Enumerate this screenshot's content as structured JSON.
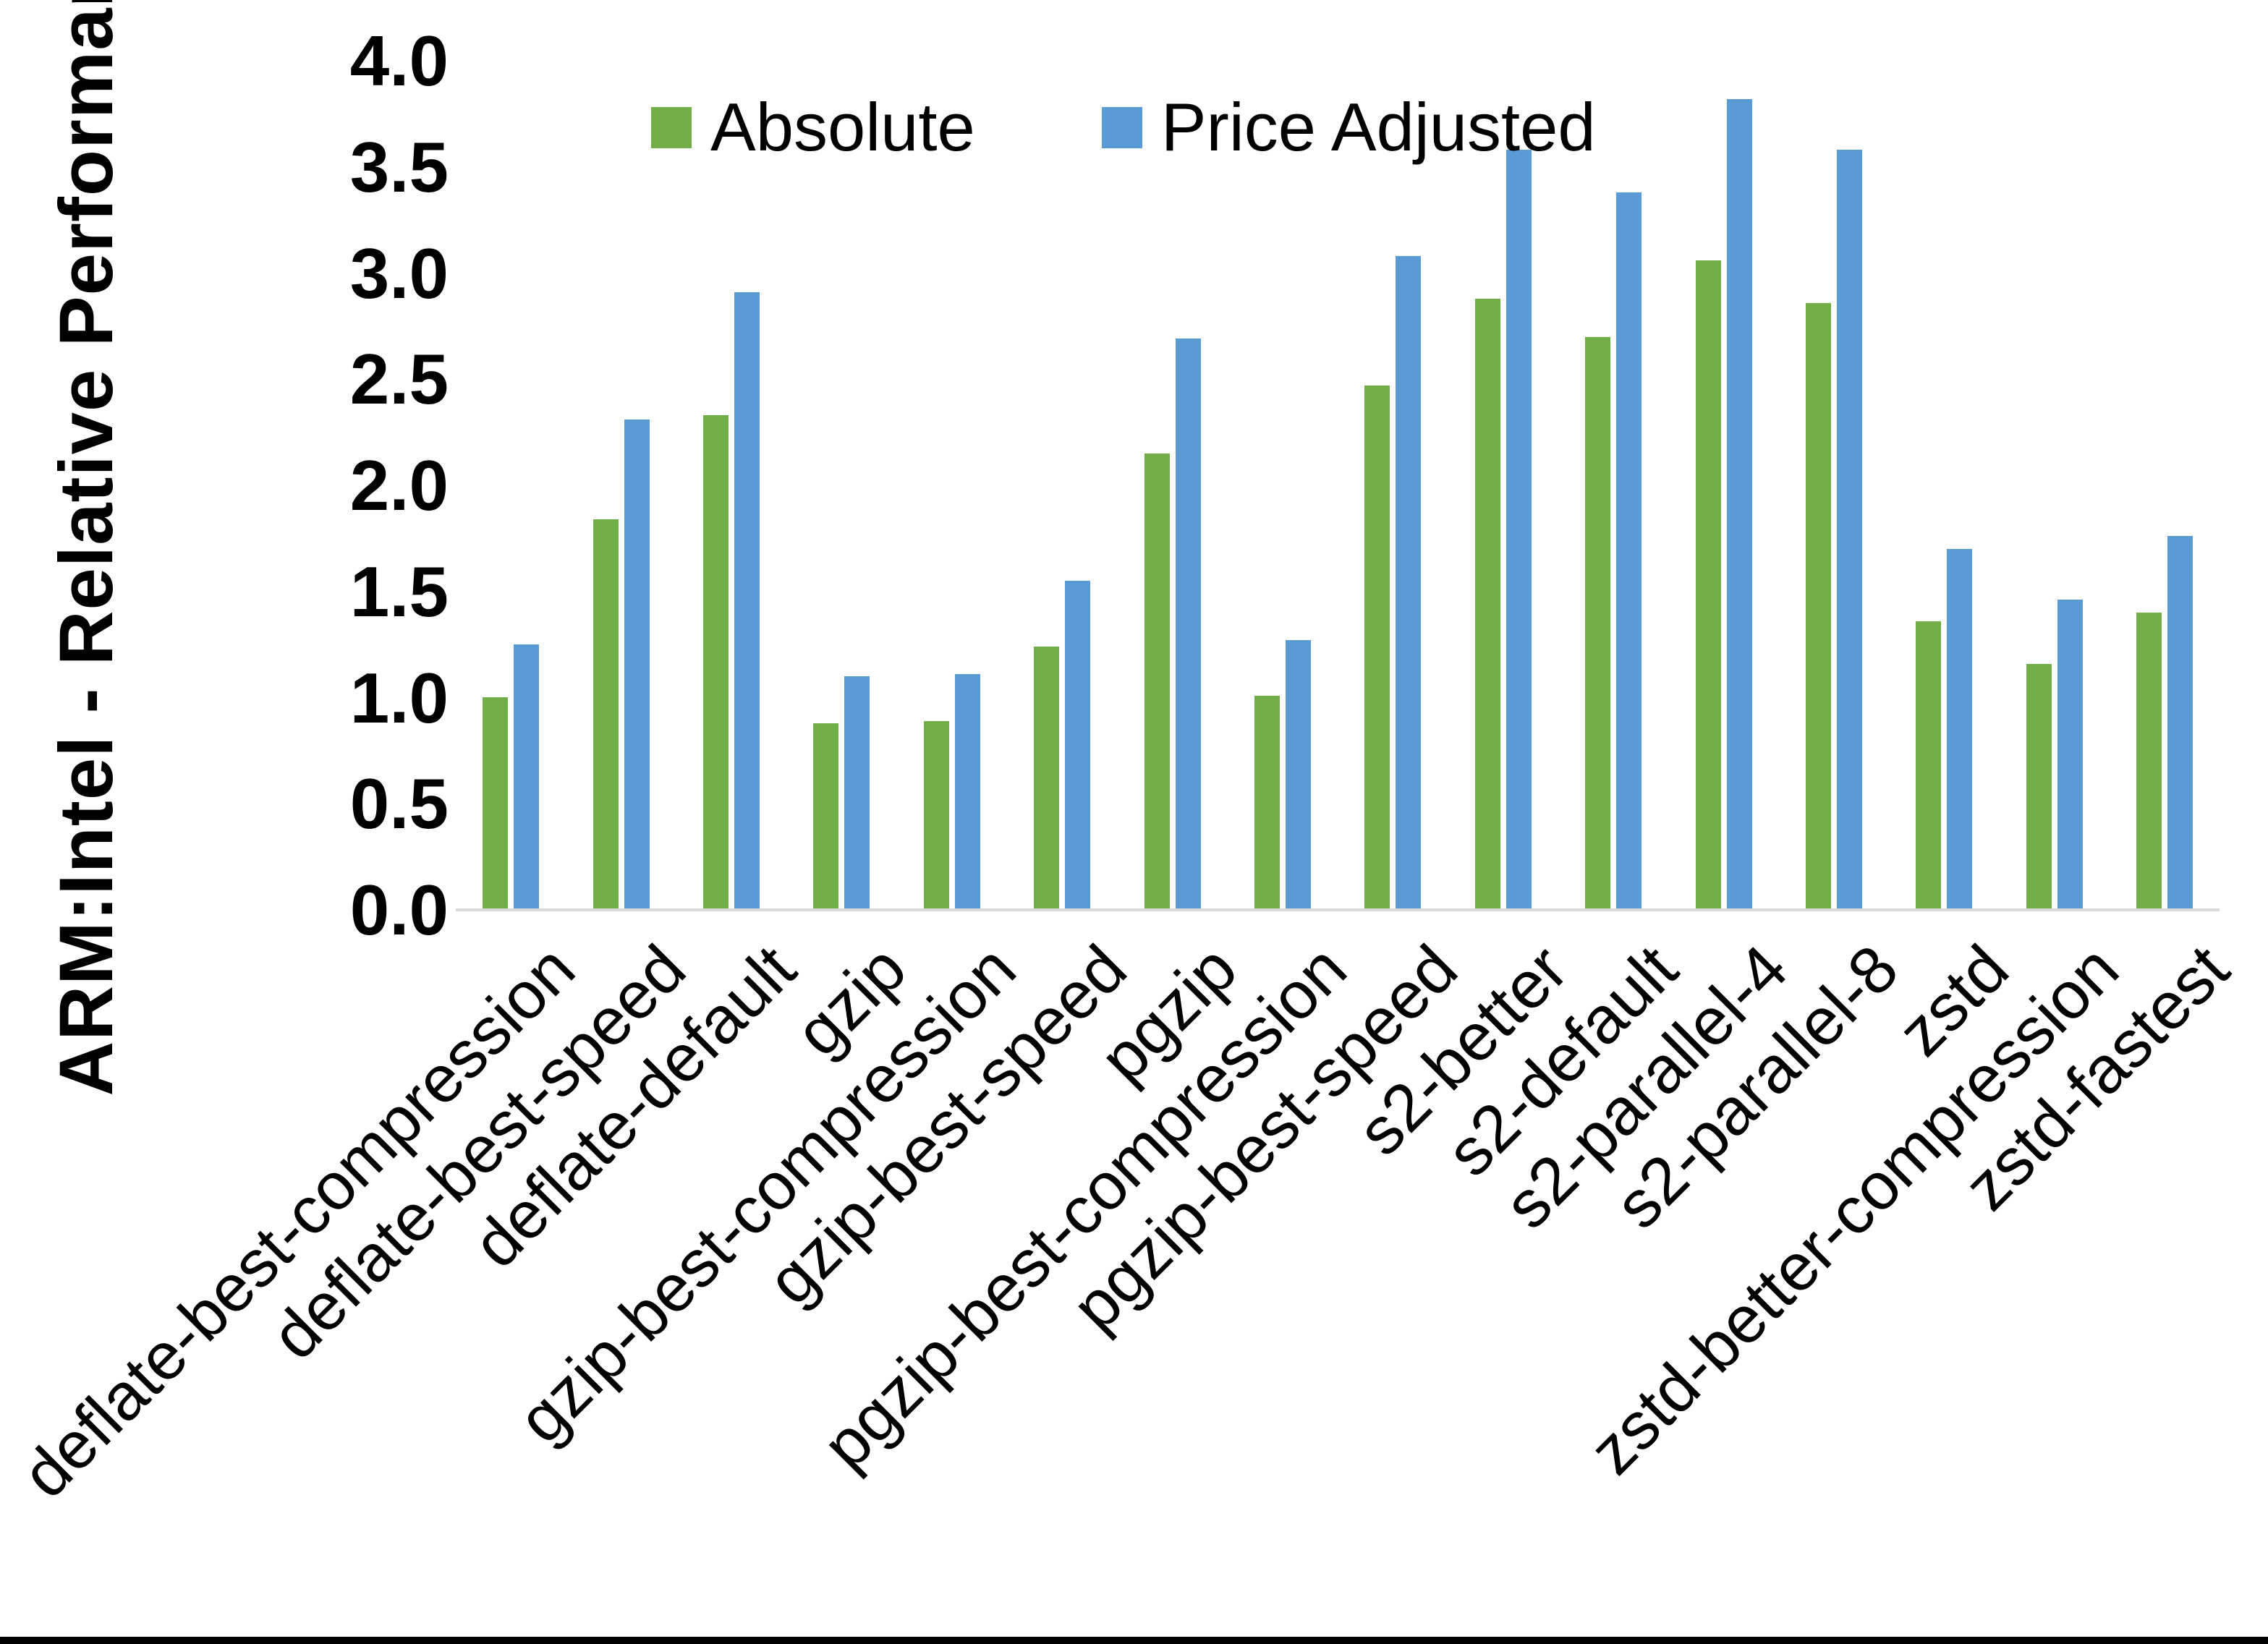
{
  "chart_data": {
    "type": "bar",
    "title": "",
    "xlabel": "",
    "ylabel": "ARM:Intel - Relative Performance",
    "ylim": [
      0.0,
      4.0
    ],
    "y_tick_step": 0.5,
    "y_ticks": [
      "0.0",
      "0.5",
      "1.0",
      "1.5",
      "2.0",
      "2.5",
      "3.0",
      "3.5",
      "4.0"
    ],
    "grid": false,
    "legend_position": "top-center",
    "categories": [
      "deflate-best-compression",
      "deflate-best-speed",
      "deflate-default",
      "gzip",
      "gzip-best-compression",
      "gzip-best-speed",
      "pgzip",
      "pgzip-best-compression",
      "pgzip-best-speed",
      "s2-better",
      "s2-default",
      "s2-parallel-4",
      "s2-parallel-8",
      "zstd",
      "zstd-better-compression",
      "zstd-fastest"
    ],
    "series": [
      {
        "name": "Absolute",
        "color": "#70AD47",
        "values": [
          1.0,
          1.84,
          2.33,
          0.88,
          0.89,
          1.24,
          2.15,
          1.01,
          2.47,
          2.88,
          2.7,
          3.06,
          2.86,
          1.36,
          1.16,
          1.4
        ]
      },
      {
        "name": "Price Adjusted",
        "color": "#5B9BD5",
        "values": [
          1.25,
          2.31,
          2.91,
          1.1,
          1.11,
          1.55,
          2.69,
          1.27,
          3.08,
          3.58,
          3.38,
          3.82,
          3.58,
          1.7,
          1.46,
          1.76
        ]
      }
    ]
  },
  "colors": {
    "axis_line": "#d9d9d9",
    "text": "#000000",
    "background": "#ffffff",
    "bottom_border": "#000000"
  }
}
